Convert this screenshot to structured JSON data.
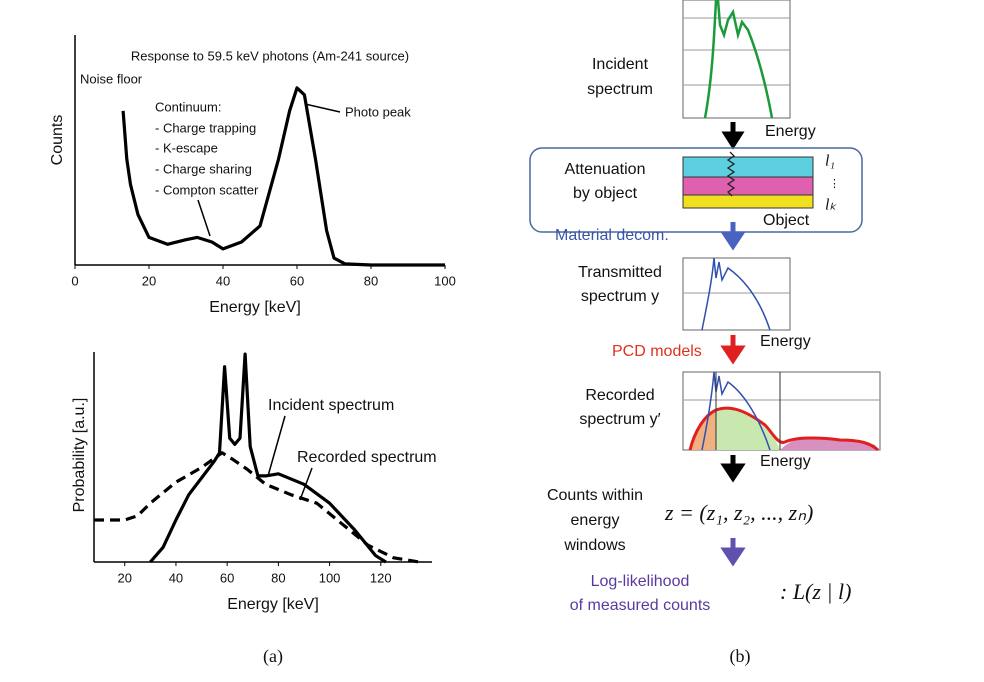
{
  "chart_data": [
    {
      "type": "line",
      "title": "Response to 59.5 keV photons (Am-241 source)",
      "x_label": "Energy [keV]",
      "y_label": "Counts",
      "x": [
        13,
        14,
        15,
        17,
        20,
        25,
        30,
        33,
        37,
        40,
        45,
        50,
        55,
        58,
        60,
        62,
        65,
        68,
        70,
        73,
        80,
        100
      ],
      "values": [
        67,
        46,
        35,
        22,
        12,
        9,
        11,
        12,
        10,
        7,
        10,
        17,
        46,
        67,
        77,
        74,
        46,
        15,
        3,
        0.5,
        0,
        0
      ],
      "color": "#000000",
      "xlim": [
        0,
        100
      ],
      "xticks": [
        0,
        20,
        40,
        60,
        80,
        100
      ],
      "ylim": [
        0,
        100
      ],
      "annotations": [
        "Noise floor",
        "Continuum:",
        "- Charge trapping",
        "- K-escape",
        "- Charge sharing",
        "- Compton scatter",
        "Photo peak"
      ]
    },
    {
      "type": "line",
      "x_label": "Energy [keV]",
      "y_label": "Probability [a.u.]",
      "xlim": [
        8,
        140
      ],
      "xticks": [
        20,
        40,
        60,
        80,
        100,
        120
      ],
      "ylim": [
        0,
        100
      ],
      "series": [
        {
          "name": "Incident spectrum",
          "color": "#000000",
          "dashed": false,
          "x": [
            30,
            35,
            40,
            45,
            50,
            55,
            57,
            59,
            61,
            63,
            65,
            67,
            69,
            72,
            75,
            80,
            90,
            100,
            110,
            118,
            122
          ],
          "values": [
            0,
            7,
            20,
            32,
            40,
            48,
            52,
            93,
            59,
            56,
            59,
            99,
            55,
            41,
            41,
            42,
            37,
            28,
            15,
            3,
            0
          ]
        },
        {
          "name": "Recorded spectrum",
          "color": "#000000",
          "dashed": true,
          "x": [
            8,
            15,
            20,
            25,
            30,
            40,
            50,
            58,
            62,
            68,
            75,
            85,
            95,
            105,
            115,
            125,
            135
          ],
          "values": [
            20,
            20,
            20,
            22,
            28,
            38,
            45,
            52,
            49,
            44,
            37,
            32,
            28,
            18,
            8,
            2,
            0
          ]
        }
      ]
    }
  ],
  "diagram": {
    "incident": [
      "Incident",
      "spectrum"
    ],
    "energy_labels": [
      "Energy",
      "Energy",
      "Energy"
    ],
    "attenuation": [
      "Attenuation",
      "by object"
    ],
    "layers": [
      "l₁",
      "⋮",
      "lₖ"
    ],
    "object": "Object",
    "material": "Material decom.",
    "transmitted": [
      "Transmitted",
      "spectrum y"
    ],
    "pcd": "PCD models",
    "recorded": [
      "Recorded",
      "spectrum y′"
    ],
    "counts": [
      "Counts within",
      "energy",
      "windows"
    ],
    "formula": "z = (z₁, z₂, ..., zₙ)",
    "loglik": [
      "Log-likelihood",
      "of measured counts"
    ],
    "likelihood": ": L(z | l)"
  },
  "captions": [
    "(a)",
    "(b)"
  ]
}
